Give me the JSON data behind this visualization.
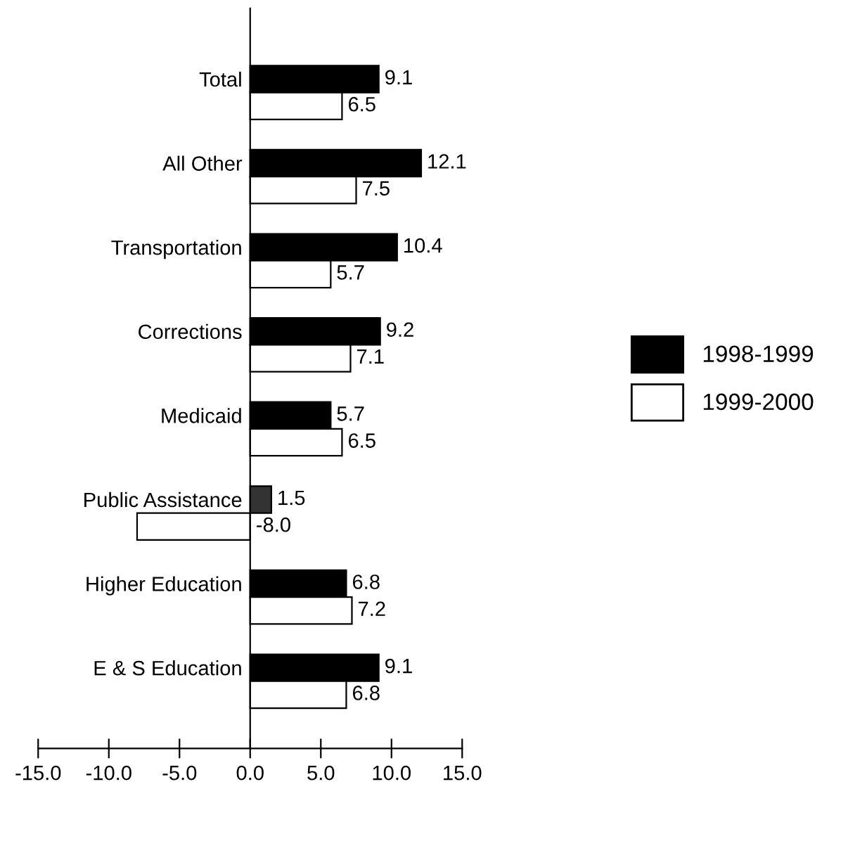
{
  "chart_data": {
    "type": "bar",
    "orientation": "horizontal",
    "categories": [
      "Total",
      "All Other",
      "Transportation",
      "Corrections",
      "Medicaid",
      "Public Assistance",
      "Higher Education",
      "E & S Education"
    ],
    "series": [
      {
        "name": "1998-1999",
        "color": "#000000",
        "colors": [
          "#000000",
          "#000000",
          "#000000",
          "#000000",
          "#000000",
          "#333333",
          "#000000",
          "#000000"
        ],
        "values": [
          9.1,
          12.1,
          10.4,
          9.2,
          5.7,
          1.5,
          6.8,
          9.1
        ],
        "value_labels": [
          "9.1",
          "12.1",
          "10.4",
          "9.2",
          "5.7",
          "1.5",
          "6.8",
          "9.1"
        ]
      },
      {
        "name": "1999-2000",
        "color": "#ffffff",
        "values": [
          6.5,
          7.5,
          5.7,
          7.1,
          6.5,
          -8.0,
          7.2,
          6.8
        ],
        "value_labels": [
          "6.5",
          "7.5",
          "5.7",
          "7.1",
          "6.5",
          "-8.0",
          "7.2",
          "6.8"
        ]
      }
    ],
    "xlim": [
      -15,
      15
    ],
    "xticks": [
      {
        "value": -15,
        "label": "-15.0"
      },
      {
        "value": -10,
        "label": "-10.0"
      },
      {
        "value": -5,
        "label": "-5.0"
      },
      {
        "value": 0,
        "label": "0.0"
      },
      {
        "value": 5,
        "label": "5.0"
      },
      {
        "value": 10,
        "label": "10.0"
      },
      {
        "value": 15,
        "label": "15.0"
      }
    ],
    "grid": false,
    "legend": "right"
  }
}
